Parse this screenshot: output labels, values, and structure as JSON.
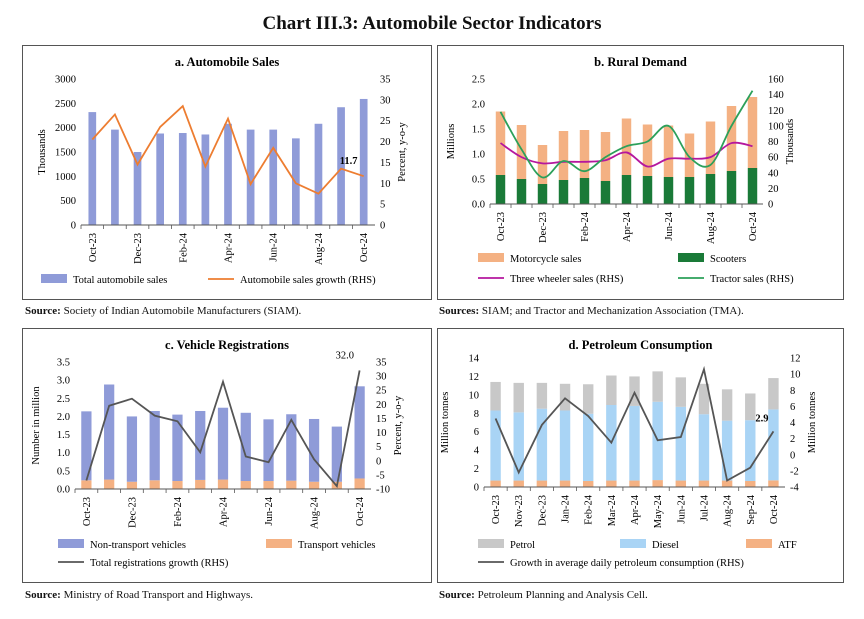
{
  "title": "Chart III.3: Automobile Sector Indicators",
  "sources": {
    "a": {
      "label": "Source:",
      "text": " Society of Indian Automobile Manufacturers (SIAM)."
    },
    "b": {
      "label": "Sources:",
      "text": " SIAM; and Tractor and Mechanization Association (TMA)."
    },
    "c": {
      "label": "Source:",
      "text": " Ministry of Road Transport and Highways."
    },
    "d": {
      "label": "Source:",
      "text": " Petroleum Planning and Analysis Cell."
    }
  },
  "colors": {
    "bar_blue": "#8f9bd8",
    "orange_line": "#ed7d31",
    "salmon": "#f4b183",
    "dark_green": "#1a7a38",
    "purple": "#b5179e",
    "green": "#2ca05a",
    "grey_line": "#555555",
    "petrol": "#c8c8c8",
    "diesel": "#a9d4f5",
    "atf": "#f4b183"
  },
  "chart_data": [
    {
      "id": "a",
      "type": "bar+line",
      "title": "a. Automobile Sales",
      "ylabel": "Thousands",
      "y2label": "Percent, y-o-y",
      "ylim": [
        0,
        3000
      ],
      "ystep": 500,
      "y2lim": [
        0,
        35
      ],
      "y2step": 5,
      "x_labels": [
        "Oct-23",
        "",
        "Dec-23",
        "",
        "Feb-24",
        "",
        "Apr-24",
        "",
        "Jun-24",
        "",
        "Aug-24",
        "",
        "Oct-24"
      ],
      "series": [
        {
          "name": "Total automobile sales",
          "kind": "bar",
          "axis": "left",
          "values": [
            2320,
            1960,
            1500,
            1880,
            1890,
            1860,
            2080,
            1960,
            1960,
            1780,
            2080,
            2420,
            2590
          ]
        },
        {
          "name": "Automobile sales growth (RHS)",
          "kind": "line",
          "axis": "right",
          "values": [
            20.5,
            26.5,
            14.5,
            23.5,
            28.5,
            14,
            25.5,
            9.8,
            18.5,
            10,
            7.5,
            13.5,
            11.7
          ]
        }
      ],
      "annotation": {
        "text": "11.7",
        "index": 12,
        "series": 1
      }
    },
    {
      "id": "b",
      "type": "stacked-bar+line",
      "title": "b. Rural Demand",
      "ylabel": "Millions",
      "y2label": "Thousands",
      "ylim": [
        0,
        2.5
      ],
      "ystep": 0.5,
      "y2lim": [
        0,
        160
      ],
      "y2step": 20,
      "x_labels": [
        "Oct-23",
        "",
        "Dec-23",
        "",
        "Feb-24",
        "",
        "Apr-24",
        "",
        "Jun-24",
        "",
        "Aug-24",
        "",
        "Oct-24"
      ],
      "series": [
        {
          "name": "Scooters",
          "kind": "stack",
          "axis": "left",
          "values": [
            0.58,
            0.5,
            0.4,
            0.48,
            0.52,
            0.46,
            0.58,
            0.56,
            0.54,
            0.54,
            0.6,
            0.66,
            0.72
          ]
        },
        {
          "name": "Motorcycle sales",
          "kind": "stack",
          "axis": "left",
          "values": [
            1.27,
            1.08,
            0.78,
            0.98,
            0.96,
            0.98,
            1.13,
            1.03,
            1.03,
            0.87,
            1.05,
            1.3,
            1.42
          ]
        },
        {
          "name": "Three wheeler sales (RHS)",
          "kind": "line",
          "axis": "right",
          "values": [
            78,
            60,
            52,
            54,
            54,
            56,
            66,
            48,
            58,
            58,
            60,
            78,
            74
          ]
        },
        {
          "name": "Tractor sales (RHS)",
          "kind": "line",
          "axis": "right",
          "values": [
            118,
            70,
            34,
            55,
            42,
            60,
            74,
            80,
            100,
            60,
            50,
            100,
            145
          ]
        }
      ],
      "legend_order": [
        "Motorcycle sales",
        "Scooters",
        "Three wheeler sales (RHS)",
        "Tractor sales (RHS)"
      ]
    },
    {
      "id": "c",
      "type": "stacked-bar+line",
      "title": "c. Vehicle Registrations",
      "ylabel": "Number in million",
      "y2label": "Percent, y-o-y",
      "ylim": [
        0,
        3.5
      ],
      "ystep": 0.5,
      "y2lim": [
        -10,
        35
      ],
      "y2step": 5,
      "x_labels": [
        "Oct-23",
        "",
        "Dec-23",
        "",
        "Feb-24",
        "",
        "Apr-24",
        "",
        "Jun-24",
        "",
        "Aug-24",
        "",
        "Oct-24"
      ],
      "series": [
        {
          "name": "Transport vehicles",
          "kind": "stack",
          "axis": "left",
          "values": [
            0.24,
            0.26,
            0.2,
            0.24,
            0.22,
            0.25,
            0.26,
            0.22,
            0.22,
            0.23,
            0.2,
            0.2,
            0.29
          ]
        },
        {
          "name": "Non-transport vehicles",
          "kind": "stack",
          "axis": "left",
          "values": [
            1.9,
            2.62,
            1.8,
            1.91,
            1.83,
            1.9,
            1.98,
            1.88,
            1.7,
            1.83,
            1.73,
            1.52,
            2.54
          ]
        },
        {
          "name": "Total registrations growth (RHS)",
          "kind": "line",
          "axis": "right",
          "values": [
            -7,
            19.5,
            22,
            16,
            14,
            3,
            28,
            1.5,
            -0.5,
            14.5,
            0.5,
            -9,
            32
          ]
        }
      ],
      "annotation": {
        "text": "32.0",
        "index": 12,
        "series": 2
      },
      "legend_order": [
        "Non-transport vehicles",
        "Transport vehicles",
        "Total registrations growth (RHS)"
      ]
    },
    {
      "id": "d",
      "type": "stacked-bar+line",
      "title": "d. Petroleum Consumption",
      "ylabel": "Million tonnes",
      "y2label": "Million tonnes",
      "ylim": [
        0,
        14
      ],
      "ystep": 2,
      "y2lim": [
        -4,
        12
      ],
      "y2step": 2,
      "x_labels": [
        "Oct-23",
        "Nov-23",
        "Dec-23",
        "Jan-24",
        "Feb-24",
        "Mar-24",
        "Apr-24",
        "May-24",
        "Jun-24",
        "Jul-24",
        "Aug-24",
        "Sep-24",
        "Oct-24"
      ],
      "series": [
        {
          "name": "ATF",
          "kind": "stack",
          "axis": "left",
          "values": [
            0.7,
            0.7,
            0.7,
            0.7,
            0.65,
            0.7,
            0.7,
            0.75,
            0.7,
            0.7,
            0.7,
            0.65,
            0.72
          ]
        },
        {
          "name": "Diesel",
          "kind": "stack",
          "axis": "left",
          "values": [
            7.6,
            7.4,
            7.8,
            7.6,
            7.3,
            8.2,
            8.1,
            8.5,
            8.0,
            7.2,
            6.5,
            6.6,
            7.7
          ]
        },
        {
          "name": "Petrol",
          "kind": "stack",
          "axis": "left",
          "values": [
            3.1,
            3.2,
            2.8,
            2.9,
            3.2,
            3.2,
            3.2,
            3.3,
            3.2,
            3.3,
            3.4,
            2.9,
            3.4
          ]
        },
        {
          "name": "Growth in average daily petroleum consumption (RHS)",
          "kind": "line",
          "axis": "right",
          "values": [
            4.5,
            -2.2,
            3.7,
            7,
            4.8,
            1.5,
            7.7,
            1.8,
            2.2,
            10.6,
            -3.2,
            -1.6,
            2.9
          ]
        }
      ],
      "annotation": {
        "text": "2.9",
        "index": 12,
        "series": 3
      },
      "legend_order": [
        "Petrol",
        "Diesel",
        "ATF",
        "Growth in average daily petroleum consumption (RHS)"
      ]
    }
  ]
}
